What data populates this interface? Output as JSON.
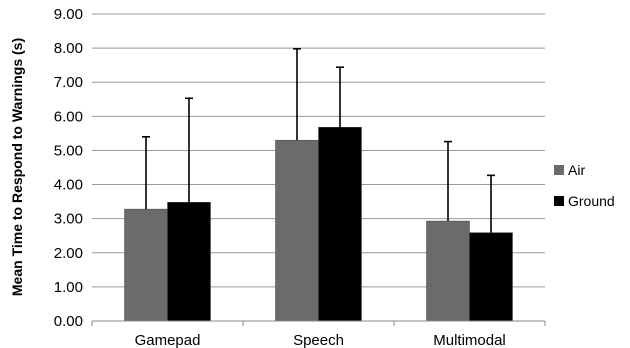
{
  "chart_data": {
    "type": "bar",
    "categories": [
      "Gamepad",
      "Speech",
      "Multimodal"
    ],
    "series": [
      {
        "name": "Air",
        "values": [
          3.28,
          5.3,
          2.93
        ],
        "errors": [
          2.12,
          2.68,
          2.33
        ],
        "color": "#6b6b6b"
      },
      {
        "name": "Ground",
        "values": [
          3.48,
          5.68,
          2.59
        ],
        "errors": [
          3.05,
          1.76,
          1.68
        ],
        "color": "#000000"
      }
    ],
    "title": "",
    "xlabel": "",
    "ylabel": "Mean Time to Respond to Warnings (s)",
    "ylim": [
      0,
      9
    ],
    "yticks": [
      "0.00",
      "1.00",
      "2.00",
      "3.00",
      "4.00",
      "5.00",
      "6.00",
      "7.00",
      "8.00",
      "9.00"
    ],
    "grid": true,
    "legend": "right"
  }
}
